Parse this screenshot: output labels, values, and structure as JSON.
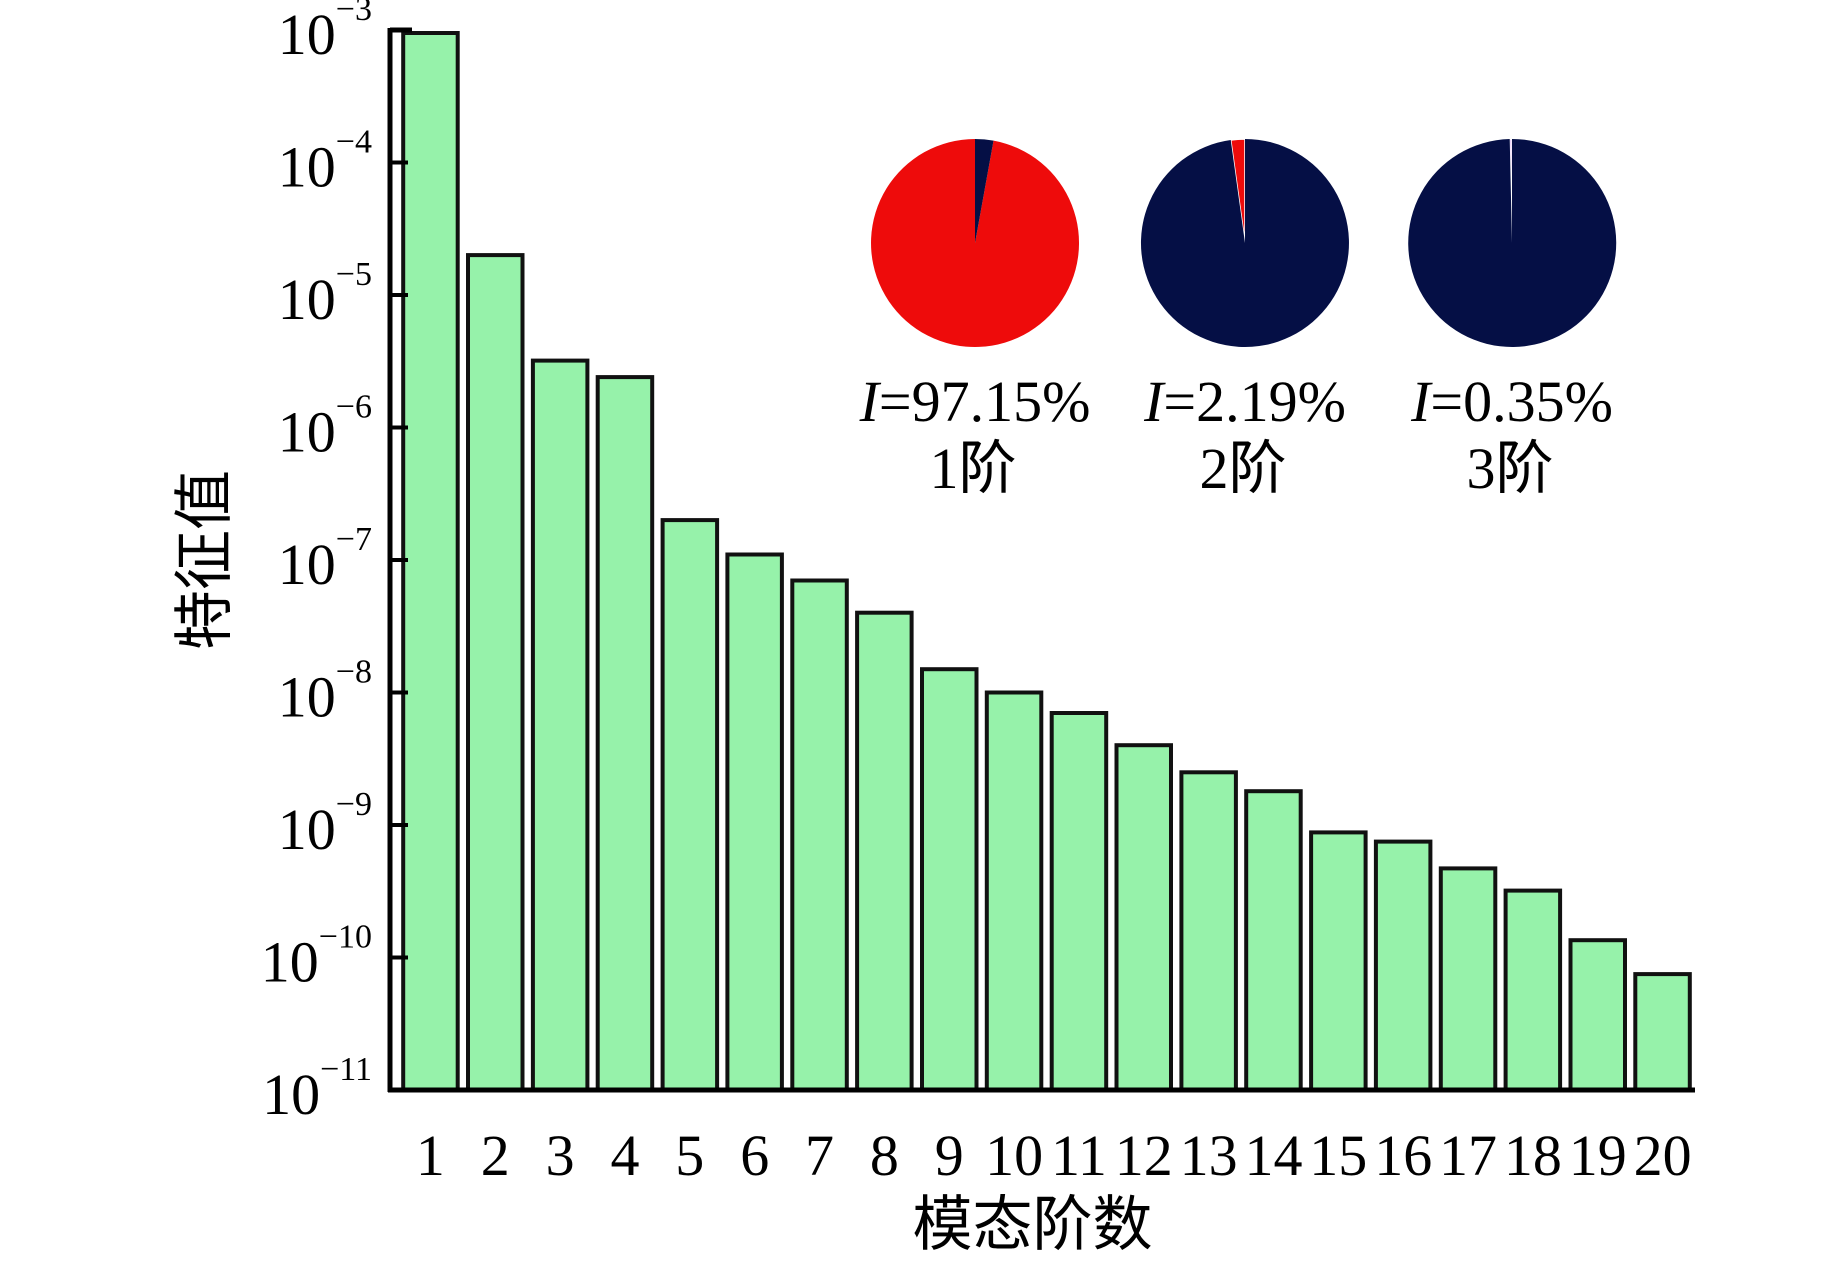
{
  "chart_data": [
    {
      "type": "bar",
      "title": "",
      "xlabel": "模态阶数",
      "ylabel": "特征值",
      "yscale": "log",
      "ylim": [
        1e-11,
        0.001
      ],
      "ytick_base": "10",
      "yticks": [
        {
          "exp": "−3",
          "value": 0.001
        },
        {
          "exp": "−4",
          "value": 0.0001
        },
        {
          "exp": "−5",
          "value": 1e-05
        },
        {
          "exp": "−6",
          "value": 1e-06
        },
        {
          "exp": "−7",
          "value": 1e-07
        },
        {
          "exp": "−8",
          "value": 1e-08
        },
        {
          "exp": "−9",
          "value": 1e-09
        },
        {
          "exp": "−10",
          "value": 1e-10
        },
        {
          "exp": "−11",
          "value": 1e-11
        }
      ],
      "categories": [
        "1",
        "2",
        "3",
        "4",
        "5",
        "6",
        "7",
        "8",
        "9",
        "10",
        "11",
        "12",
        "13",
        "14",
        "15",
        "16",
        "17",
        "18",
        "19",
        "20"
      ],
      "values": [
        0.00095,
        2e-05,
        3.2e-06,
        2.4e-06,
        2e-07,
        1.1e-07,
        7e-08,
        4e-08,
        1.5e-08,
        1e-08,
        7e-09,
        4e-09,
        2.5e-09,
        1.8e-09,
        8.8e-10,
        7.5e-10,
        4.7e-10,
        3.2e-10,
        1.35e-10,
        7.5e-11
      ],
      "bar_color": "#96f2aa",
      "bar_edge_color": "#111111",
      "grid": false
    },
    {
      "type": "pie",
      "mode_label": "1阶",
      "percent_label": "=97.15%",
      "percent_symbol": "I",
      "slices": [
        {
          "value": 97.15,
          "color": "#ee0b0b"
        },
        {
          "value": 2.85,
          "color": "#050f45"
        }
      ]
    },
    {
      "type": "pie",
      "mode_label": "2阶",
      "percent_label": "=2.19%",
      "percent_symbol": "I",
      "slices": [
        {
          "value": 2.19,
          "color": "#ee0b0b"
        },
        {
          "value": 97.81,
          "color": "#050f45"
        }
      ]
    },
    {
      "type": "pie",
      "mode_label": "3阶",
      "percent_label": "=0.35%",
      "percent_symbol": "I",
      "slices": [
        {
          "value": 0.35,
          "color": "#d8a0f0"
        },
        {
          "value": 99.65,
          "color": "#050f45"
        }
      ]
    }
  ]
}
